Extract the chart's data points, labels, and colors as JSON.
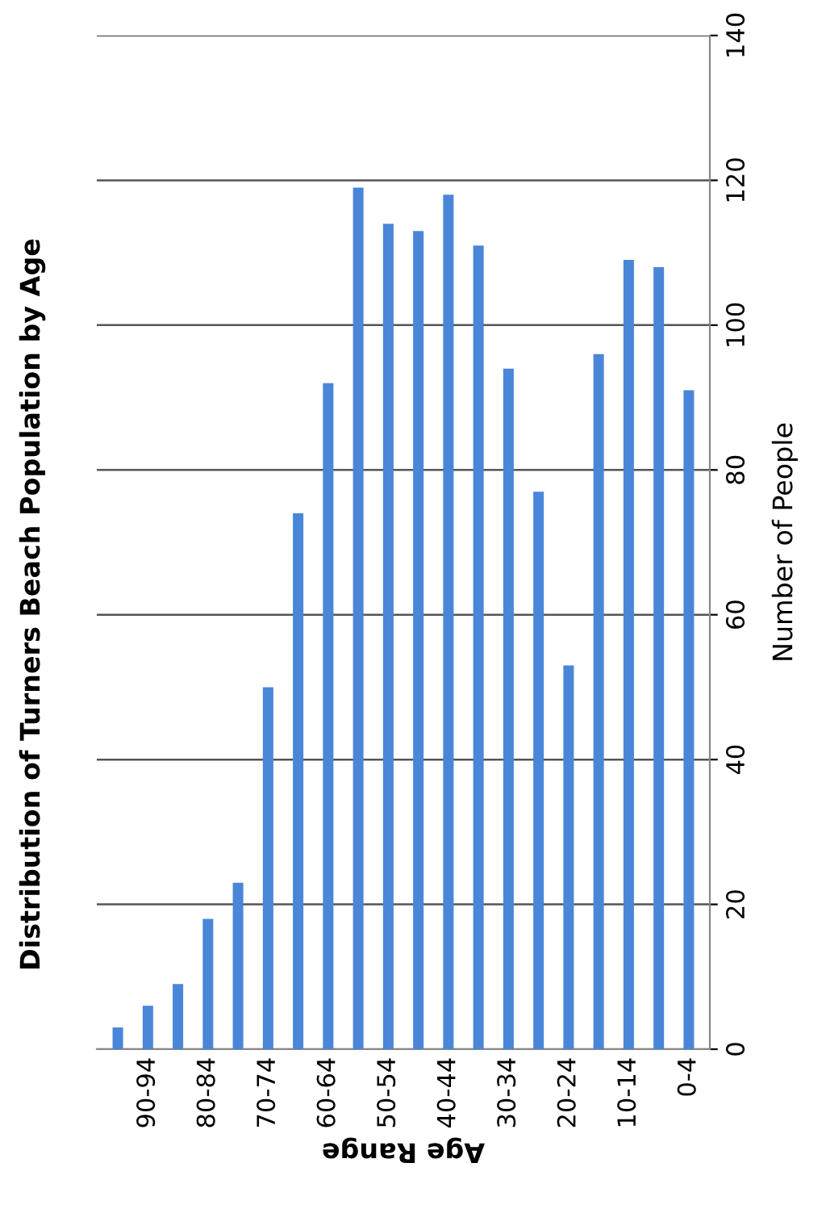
{
  "chart_data": {
    "type": "bar",
    "title": "Distribution of Turners Beach Population by Age",
    "xlabel": "Age Range",
    "ylabel": "Number of People",
    "categories": [
      null,
      "90-94",
      null,
      "80-84",
      null,
      "70-74",
      null,
      "60-64",
      null,
      "50-54",
      null,
      "40-44",
      null,
      "30-34",
      null,
      "20-24",
      null,
      "10-14",
      null,
      "0-4"
    ],
    "values": [
      3,
      6,
      9,
      18,
      23,
      50,
      74,
      92,
      119,
      114,
      113,
      118,
      111,
      94,
      77,
      53,
      96,
      109,
      108,
      91
    ],
    "color": "#4a86d8",
    "ylim": [
      0,
      140
    ],
    "yticks": [
      0,
      20,
      40,
      60,
      80,
      100,
      120,
      140
    ],
    "grid": "y",
    "legend": false
  }
}
